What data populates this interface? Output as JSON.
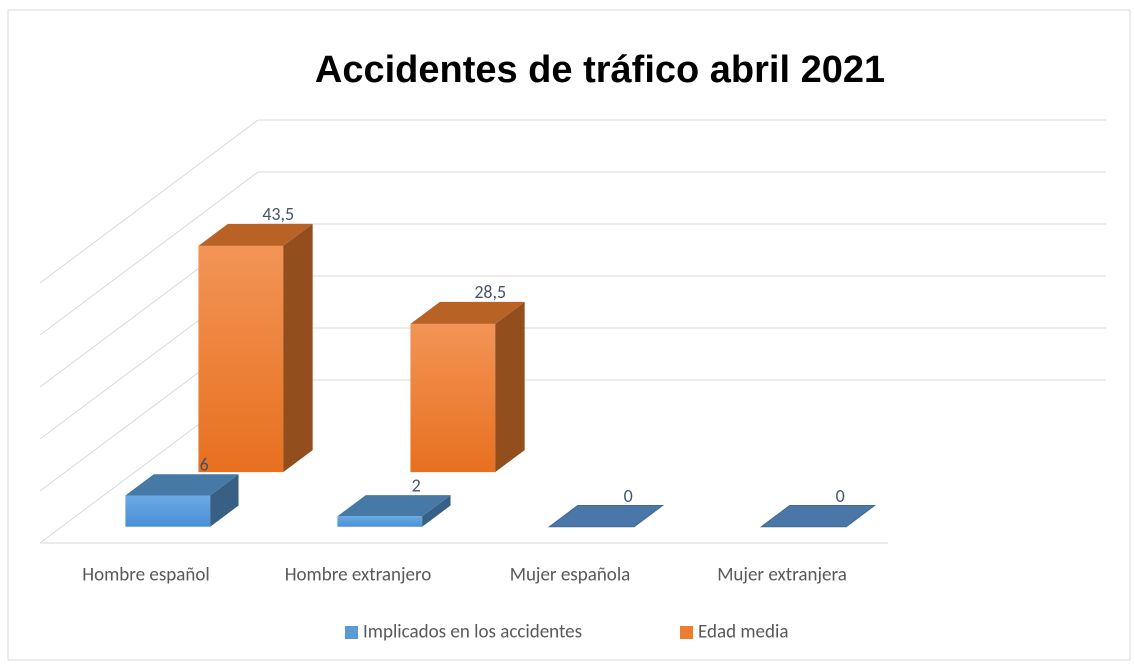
{
  "chart_data": {
    "type": "bar3d",
    "title": "Accidentes de tráfico abril 2021",
    "categories": [
      "Hombre español",
      "Hombre extranjero",
      "Mujer española",
      "Mujer extranjera"
    ],
    "series": [
      {
        "name": "Implicados en los accidentes",
        "color": "#5b9bd5",
        "values": [
          6,
          2,
          0,
          0
        ]
      },
      {
        "name": "Edad media",
        "color": "#ed7d31",
        "values": [
          43.5,
          28.5,
          null,
          null
        ],
        "value_labels": [
          "43,5",
          "28,5",
          null,
          null
        ]
      }
    ],
    "ylim": [
      0,
      50
    ],
    "yticks": [
      0,
      10,
      20,
      30,
      40,
      50
    ],
    "grid": true,
    "legend": "bottom"
  }
}
